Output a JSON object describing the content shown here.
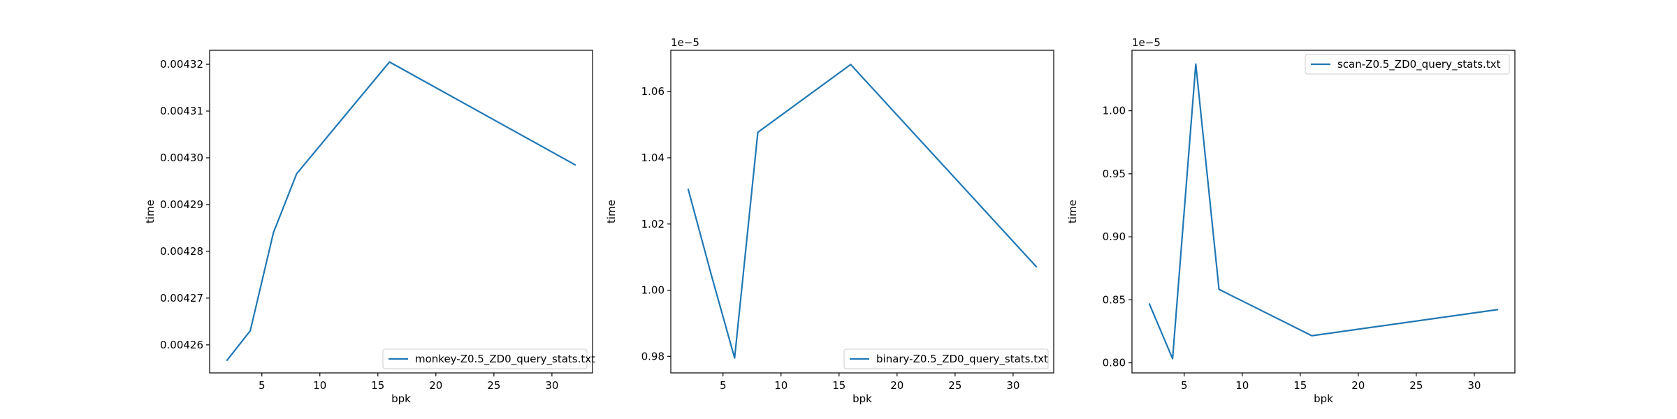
{
  "chart_data": [
    {
      "type": "line",
      "xlabel": "bpk",
      "ylabel": "time",
      "offset_label": "",
      "x": [
        2,
        4,
        6,
        8,
        16,
        32
      ],
      "series": [
        {
          "name": "monkey-Z0.5_ZD0_query_stats.txt",
          "color": "#1f77b4",
          "values": [
            0.0042567,
            0.004263,
            0.004284,
            0.0042966,
            0.0043205,
            0.0042985
          ]
        }
      ],
      "xlim": [
        0.5,
        33.5
      ],
      "ylim": [
        0.004254,
        0.004323
      ],
      "xticks": [
        5,
        10,
        15,
        20,
        25,
        30
      ],
      "xtick_labels": [
        "5",
        "10",
        "15",
        "20",
        "25",
        "30"
      ],
      "yticks": [
        0.00426,
        0.00427,
        0.00428,
        0.00429,
        0.0043,
        0.00431,
        0.00432
      ],
      "ytick_labels": [
        "0.00426",
        "0.00427",
        "0.00428",
        "0.00429",
        "0.00430",
        "0.00431",
        "0.00432"
      ],
      "legend": "lower right",
      "grid": false
    },
    {
      "type": "line",
      "xlabel": "bpk",
      "ylabel": "time",
      "offset_label": "1e−5",
      "x": [
        2,
        4,
        6,
        8,
        16,
        32
      ],
      "series": [
        {
          "name": "binary-Z0.5_ZD0_query_stats.txt",
          "color": "#1f77b4",
          "values": [
            1.0305,
            1.0045,
            0.9795,
            1.0477,
            1.0682,
            1.0071
          ]
        }
      ],
      "xlim": [
        0.5,
        33.5
      ],
      "ylim": [
        0.975,
        1.0725
      ],
      "xticks": [
        5,
        10,
        15,
        20,
        25,
        30
      ],
      "xtick_labels": [
        "5",
        "10",
        "15",
        "20",
        "25",
        "30"
      ],
      "yticks": [
        0.98,
        1.0,
        1.02,
        1.04,
        1.06
      ],
      "ytick_labels": [
        "0.98",
        "1.00",
        "1.02",
        "1.04",
        "1.06"
      ],
      "legend": "lower right",
      "grid": false
    },
    {
      "type": "line",
      "xlabel": "bpk",
      "ylabel": "time",
      "offset_label": "1e−5",
      "x": [
        2,
        4,
        6,
        8,
        16,
        32
      ],
      "series": [
        {
          "name": "scan-Z0.5_ZD0_query_stats.txt",
          "color": "#1f77b4",
          "values": [
            0.8467,
            0.8033,
            1.0371,
            0.8583,
            0.8215,
            0.8422
          ]
        }
      ],
      "xlim": [
        0.5,
        33.5
      ],
      "ylim": [
        0.792,
        1.048
      ],
      "xticks": [
        5,
        10,
        15,
        20,
        25,
        30
      ],
      "xtick_labels": [
        "5",
        "10",
        "15",
        "20",
        "25",
        "30"
      ],
      "yticks": [
        0.8,
        0.85,
        0.9,
        0.95,
        1.0
      ],
      "ytick_labels": [
        "0.80",
        "0.85",
        "0.90",
        "0.95",
        "1.00"
      ],
      "legend": "upper right",
      "grid": false
    }
  ]
}
